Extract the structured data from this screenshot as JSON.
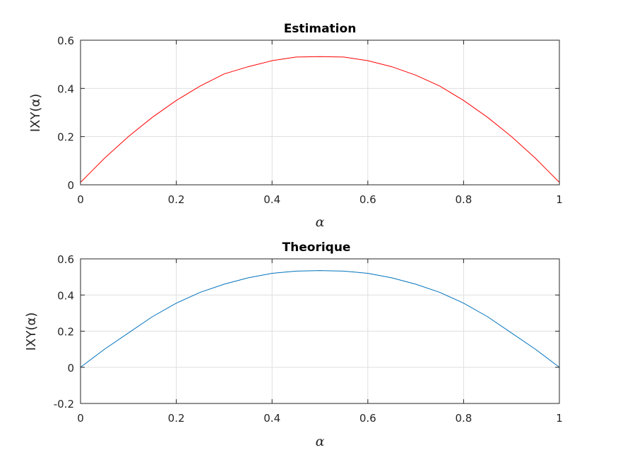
{
  "chart_data": [
    {
      "type": "line",
      "title": "Estimation",
      "xlabel": "α",
      "ylabel": "IXY(α)",
      "xlim": [
        0,
        1
      ],
      "ylim": [
        0,
        0.6
      ],
      "xticks": [
        "0",
        "0.2",
        "0.4",
        "0.6",
        "0.8",
        "1"
      ],
      "yticks": [
        "0",
        "0.2",
        "0.4",
        "0.6"
      ],
      "grid": true,
      "series": [
        {
          "color": "#ff0000",
          "x": [
            0,
            0.02,
            0.05,
            0.1,
            0.15,
            0.2,
            0.25,
            0.3,
            0.35,
            0.4,
            0.45,
            0.5,
            0.55,
            0.6,
            0.65,
            0.7,
            0.75,
            0.8,
            0.85,
            0.9,
            0.95,
            0.98,
            1
          ],
          "y": [
            0.01,
            0.05,
            0.11,
            0.2,
            0.28,
            0.35,
            0.41,
            0.46,
            0.49,
            0.515,
            0.53,
            0.532,
            0.53,
            0.515,
            0.49,
            0.455,
            0.41,
            0.35,
            0.28,
            0.2,
            0.11,
            0.05,
            0.01
          ]
        }
      ]
    },
    {
      "type": "line",
      "title": "Theorique",
      "xlabel": "α",
      "ylabel": "IXY(α)",
      "xlim": [
        0,
        1
      ],
      "ylim": [
        -0.2,
        0.6
      ],
      "xticks": [
        "0",
        "0.2",
        "0.4",
        "0.6",
        "0.8",
        "1"
      ],
      "yticks": [
        "-0.2",
        "0",
        "0.2",
        "0.4",
        "0.6"
      ],
      "grid": true,
      "series": [
        {
          "color": "#0072bd",
          "x": [
            0,
            0.05,
            0.1,
            0.15,
            0.2,
            0.25,
            0.3,
            0.35,
            0.4,
            0.45,
            0.5,
            0.55,
            0.6,
            0.65,
            0.7,
            0.75,
            0.8,
            0.85,
            0.9,
            0.95,
            1
          ],
          "y": [
            0,
            0.1,
            0.19,
            0.28,
            0.355,
            0.415,
            0.46,
            0.495,
            0.52,
            0.532,
            0.535,
            0.532,
            0.52,
            0.495,
            0.46,
            0.415,
            0.355,
            0.28,
            0.19,
            0.1,
            0
          ]
        }
      ]
    }
  ]
}
